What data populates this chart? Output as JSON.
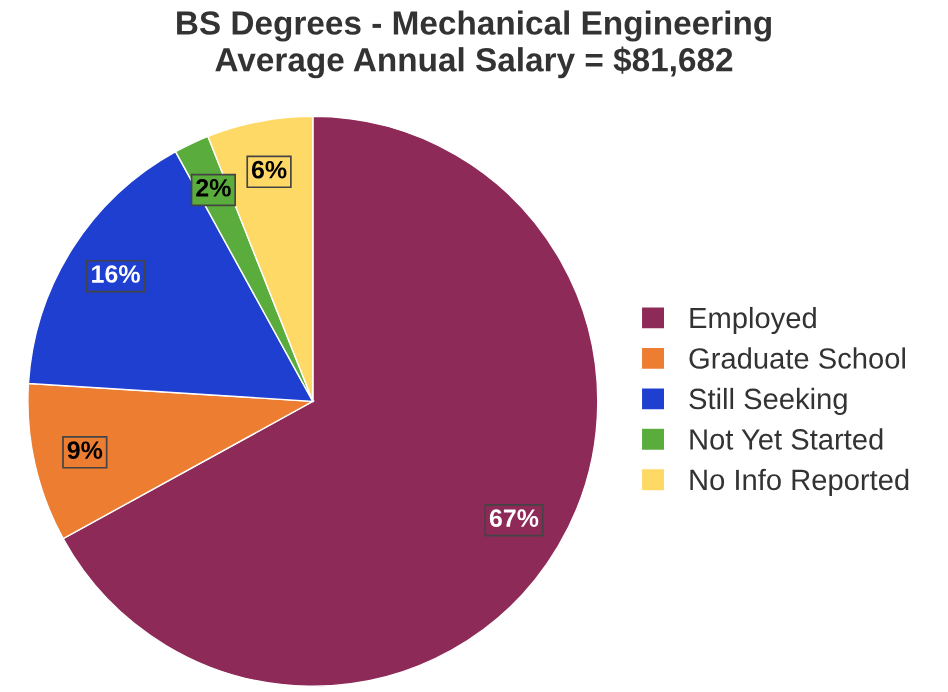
{
  "chart_data": {
    "type": "pie",
    "title": "BS Degrees - Mechanical Engineering\nAverage Annual Salary = $81,682",
    "categories": [
      "Employed",
      "Graduate School",
      "Still Seeking",
      "Not Yet Started",
      "No Info Reported"
    ],
    "values": [
      67,
      9,
      16,
      2,
      6
    ],
    "colors": [
      "#8e2a58",
      "#ed7d31",
      "#1f3fd0",
      "#5aac3c",
      "#ffd966"
    ],
    "value_labels": [
      "67%",
      "9%",
      "16%",
      "2%",
      "6%"
    ],
    "legend": "right"
  }
}
